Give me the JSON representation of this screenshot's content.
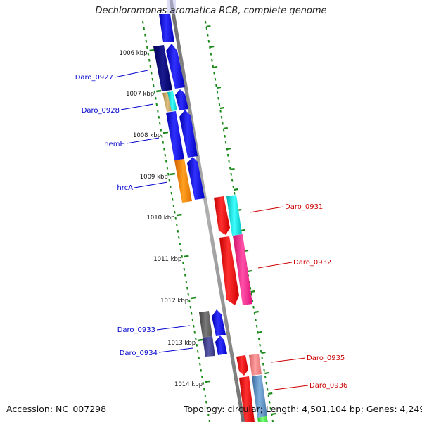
{
  "title": "Dechloromonas aromatica RCB, complete genome",
  "accession": "Accession: NC_007298",
  "topology": "Topology: circular; Length: 4,501,104 bp; Genes: 4,249",
  "colors": {
    "forward_label": "#0000cc",
    "reverse_label": "#cc0000",
    "ruler_ticks": "#1a8a1a",
    "backbone": "#888888"
  },
  "kbp_ticks": [
    "1006 kbp",
    "1007 kbp",
    "1008 kbp",
    "1009 kbp",
    "1010 kbp",
    "1011 kbp",
    "1012 kbp",
    "1013 kbp",
    "1014 kbp"
  ],
  "forward_genes": [
    {
      "label": "Daro_0927",
      "color": "#0a0a7a"
    },
    {
      "label": "Daro_0928",
      "color": "#c8a050"
    },
    {
      "label": "hemH",
      "color": "#1010e0"
    },
    {
      "label": "hrcA",
      "color": "#ff8c00"
    },
    {
      "label": "Daro_0933",
      "color": "#555555"
    },
    {
      "label": "Daro_0934",
      "color": "#3a3a8a"
    }
  ],
  "reverse_genes": [
    {
      "label": "Daro_0931",
      "color": "#ff0000"
    },
    {
      "label": "Daro_0932",
      "color": "#ff1493"
    },
    {
      "label": "Daro_0935",
      "color": "#ff0000"
    },
    {
      "label": "Daro_0936",
      "color": "#4682b4"
    }
  ]
}
